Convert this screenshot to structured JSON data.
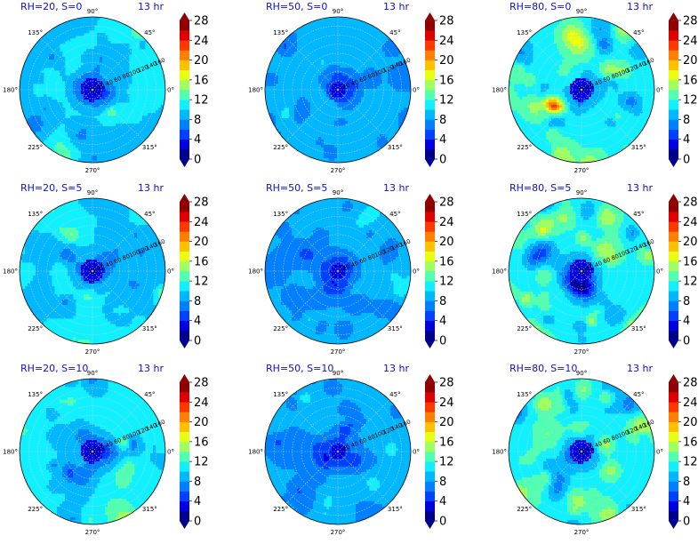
{
  "colors": {
    "levels": [
      "#00008f",
      "#0000e0",
      "#0040ff",
      "#0080ff",
      "#00b8ff",
      "#10f0ff",
      "#50ffb0",
      "#a0ff60",
      "#e8ff10",
      "#ffc000",
      "#ff8000",
      "#ff3800",
      "#e00000",
      "#900000"
    ],
    "grid": "#c8c8c8",
    "title": "#1010d0"
  },
  "chart_data": [
    {
      "type": "heatmap",
      "projection": "polar",
      "title": "RH=20, S=0",
      "time_label": "13 hr",
      "angle_ticks": [
        "0°",
        "45°",
        "90°",
        "135°",
        "180°",
        "225°",
        "270°",
        "315°"
      ],
      "radial_ticks": [
        "20",
        "40",
        "60",
        "80",
        "100",
        "120",
        "140",
        "160"
      ],
      "colorbar_ticks": [
        "0",
        "4",
        "8",
        "12",
        "16",
        "20",
        "24",
        "28"
      ],
      "colorbar_range": [
        0,
        28
      ],
      "field": {
        "base": 10,
        "amp": 2.5,
        "center": 3,
        "seed": 11
      }
    },
    {
      "type": "heatmap",
      "projection": "polar",
      "title": "RH=50, S=0",
      "time_label": "13 hr",
      "angle_ticks": [
        "0°",
        "45°",
        "90°",
        "135°",
        "180°",
        "225°",
        "270°",
        "315°"
      ],
      "radial_ticks": [
        "20",
        "40",
        "60",
        "80",
        "100",
        "120",
        "140",
        "160"
      ],
      "colorbar_ticks": [
        "0",
        "4",
        "8",
        "12",
        "16",
        "20",
        "24",
        "28"
      ],
      "colorbar_range": [
        0,
        28
      ],
      "field": {
        "base": 8.5,
        "amp": 2.2,
        "center": 4,
        "seed": 23
      }
    },
    {
      "type": "heatmap",
      "projection": "polar",
      "title": "RH=80, S=0",
      "time_label": "13 hr",
      "angle_ticks": [
        "0°",
        "45°",
        "90°",
        "135°",
        "180°",
        "225°",
        "270°",
        "315°"
      ],
      "radial_ticks": [
        "20",
        "40",
        "60",
        "80",
        "100",
        "120",
        "140",
        "160"
      ],
      "colorbar_ticks": [
        "0",
        "4",
        "8",
        "12",
        "16",
        "20",
        "24",
        "28"
      ],
      "colorbar_range": [
        0,
        28
      ],
      "field": {
        "base": 11.5,
        "amp": 4.2,
        "center": 3,
        "seed": 37
      }
    },
    {
      "type": "heatmap",
      "projection": "polar",
      "title": "RH=20, S=5",
      "time_label": "13 hr",
      "angle_ticks": [
        "0°",
        "45°",
        "90°",
        "135°",
        "180°",
        "225°",
        "270°",
        "315°"
      ],
      "radial_ticks": [
        "20",
        "40",
        "60",
        "80",
        "100",
        "120",
        "140",
        "160"
      ],
      "colorbar_ticks": [
        "0",
        "4",
        "8",
        "12",
        "16",
        "20",
        "24",
        "28"
      ],
      "colorbar_range": [
        0,
        28
      ],
      "field": {
        "base": 10,
        "amp": 2.5,
        "center": 3,
        "seed": 41
      }
    },
    {
      "type": "heatmap",
      "projection": "polar",
      "title": "RH=50, S=5",
      "time_label": "13 hr",
      "angle_ticks": [
        "0°",
        "45°",
        "90°",
        "135°",
        "180°",
        "225°",
        "270°",
        "315°"
      ],
      "radial_ticks": [
        "20",
        "40",
        "60",
        "80",
        "100",
        "120",
        "140",
        "160"
      ],
      "colorbar_ticks": [
        "0",
        "4",
        "8",
        "12",
        "16",
        "20",
        "24",
        "28"
      ],
      "colorbar_range": [
        0,
        28
      ],
      "field": {
        "base": 8.5,
        "amp": 2.2,
        "center": 4,
        "seed": 53
      }
    },
    {
      "type": "heatmap",
      "projection": "polar",
      "title": "RH=80, S=5",
      "time_label": "13 hr",
      "angle_ticks": [
        "0°",
        "45°",
        "90°",
        "135°",
        "180°",
        "225°",
        "270°",
        "315°"
      ],
      "radial_ticks": [
        "20",
        "40",
        "60",
        "80",
        "100",
        "120",
        "140",
        "160"
      ],
      "colorbar_ticks": [
        "0",
        "4",
        "8",
        "12",
        "16",
        "20",
        "24",
        "28"
      ],
      "colorbar_range": [
        0,
        28
      ],
      "field": {
        "base": 11.5,
        "amp": 4.2,
        "center": 3,
        "seed": 67
      }
    },
    {
      "type": "heatmap",
      "projection": "polar",
      "title": "RH=20, S=10",
      "time_label": "13 hr",
      "angle_ticks": [
        "0°",
        "45°",
        "90°",
        "135°",
        "180°",
        "225°",
        "270°",
        "315°"
      ],
      "radial_ticks": [
        "20",
        "40",
        "60",
        "80",
        "100",
        "120",
        "140",
        "160"
      ],
      "colorbar_ticks": [
        "0",
        "4",
        "8",
        "12",
        "16",
        "20",
        "24",
        "28"
      ],
      "colorbar_range": [
        0,
        28
      ],
      "field": {
        "base": 10.5,
        "amp": 2.7,
        "center": 3,
        "seed": 71
      }
    },
    {
      "type": "heatmap",
      "projection": "polar",
      "title": "RH=50, S=10",
      "time_label": "13 hr",
      "angle_ticks": [
        "0°",
        "45°",
        "90°",
        "135°",
        "180°",
        "225°",
        "270°",
        "315°"
      ],
      "radial_ticks": [
        "20",
        "40",
        "60",
        "80",
        "100",
        "120",
        "140",
        "160"
      ],
      "colorbar_ticks": [
        "0",
        "4",
        "8",
        "12",
        "16",
        "20",
        "24",
        "28"
      ],
      "colorbar_range": [
        0,
        28
      ],
      "field": {
        "base": 8.5,
        "amp": 2.2,
        "center": 4,
        "seed": 83
      }
    },
    {
      "type": "heatmap",
      "projection": "polar",
      "title": "RH=80, S=10",
      "time_label": "13 hr",
      "angle_ticks": [
        "0°",
        "45°",
        "90°",
        "135°",
        "180°",
        "225°",
        "270°",
        "315°"
      ],
      "radial_ticks": [
        "20",
        "40",
        "60",
        "80",
        "100",
        "120",
        "140",
        "160"
      ],
      "colorbar_ticks": [
        "0",
        "4",
        "8",
        "12",
        "16",
        "20",
        "24",
        "28"
      ],
      "colorbar_range": [
        0,
        28
      ],
      "field": {
        "base": 11.5,
        "amp": 4.2,
        "center": 3,
        "seed": 97
      }
    }
  ]
}
